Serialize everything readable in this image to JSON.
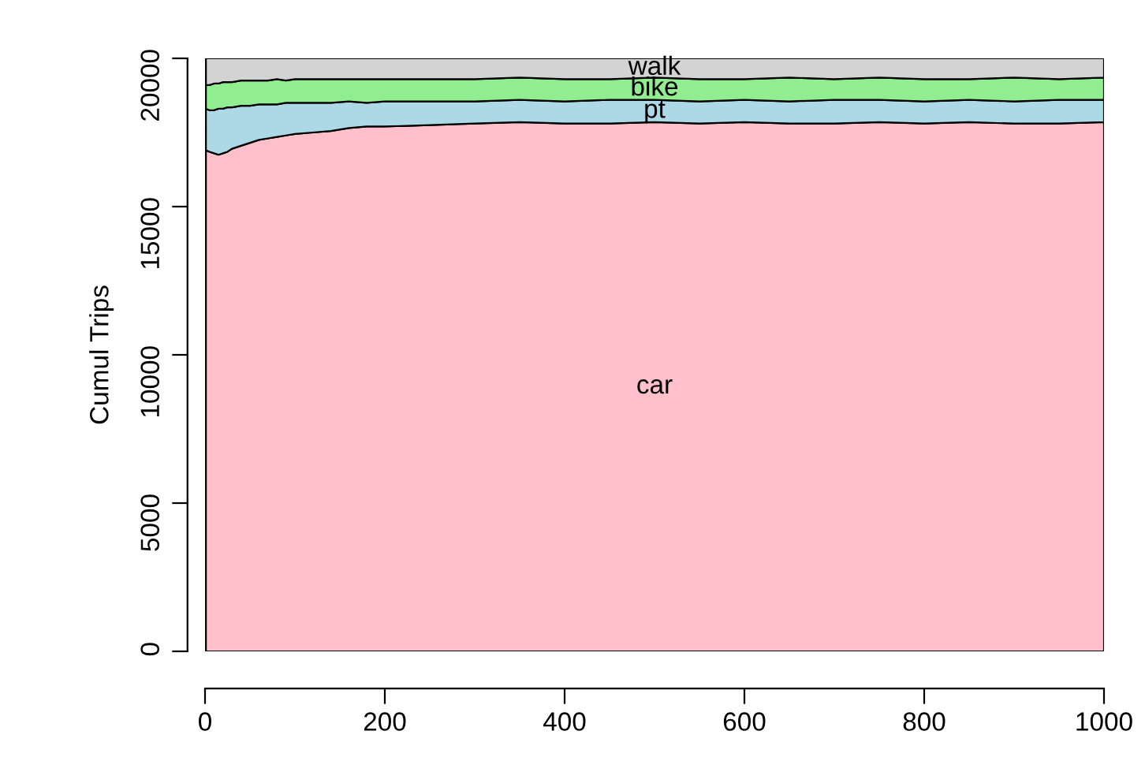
{
  "chart_data": {
    "type": "area",
    "stacked": true,
    "ylabel": "Cumul Trips",
    "x": [
      1,
      5,
      10,
      15,
      20,
      25,
      30,
      40,
      50,
      60,
      70,
      80,
      90,
      100,
      120,
      140,
      160,
      180,
      200,
      250,
      300,
      350,
      400,
      450,
      500,
      550,
      600,
      650,
      700,
      750,
      800,
      850,
      900,
      950,
      1000
    ],
    "series": [
      {
        "name": "car",
        "color": "#ffc0cb",
        "values": [
          16900,
          16850,
          16800,
          16750,
          16800,
          16850,
          16950,
          17050,
          17150,
          17250,
          17300,
          17350,
          17400,
          17450,
          17500,
          17550,
          17650,
          17700,
          17700,
          17750,
          17800,
          17850,
          17800,
          17800,
          17850,
          17800,
          17850,
          17800,
          17800,
          17850,
          17800,
          17850,
          17800,
          17800,
          17850
        ]
      },
      {
        "name": "pt",
        "color": "#add8e6",
        "values": [
          1400,
          1400,
          1450,
          1550,
          1500,
          1500,
          1400,
          1350,
          1250,
          1200,
          1150,
          1100,
          1100,
          1050,
          1000,
          950,
          900,
          800,
          850,
          800,
          750,
          750,
          750,
          800,
          750,
          750,
          750,
          750,
          800,
          750,
          750,
          750,
          750,
          800,
          750
        ]
      },
      {
        "name": "bike",
        "color": "#90ee90",
        "values": [
          800,
          850,
          900,
          850,
          900,
          850,
          850,
          850,
          850,
          800,
          800,
          850,
          750,
          800,
          800,
          800,
          750,
          800,
          750,
          750,
          750,
          750,
          750,
          700,
          750,
          750,
          700,
          800,
          700,
          750,
          750,
          700,
          800,
          700,
          750
        ]
      },
      {
        "name": "walk",
        "color": "#d3d3d3",
        "values": [
          900,
          900,
          850,
          850,
          800,
          800,
          800,
          750,
          750,
          750,
          750,
          700,
          750,
          700,
          700,
          700,
          700,
          700,
          700,
          700,
          700,
          650,
          700,
          700,
          650,
          700,
          700,
          650,
          700,
          650,
          700,
          700,
          650,
          700,
          650
        ]
      }
    ],
    "xlim": [
      0,
      1000
    ],
    "ylim": [
      0,
      20000
    ],
    "xticks": [
      0,
      200,
      400,
      600,
      800,
      1000
    ],
    "yticks": [
      0,
      5000,
      10000,
      15000,
      20000
    ],
    "grid": false,
    "legend": false
  }
}
